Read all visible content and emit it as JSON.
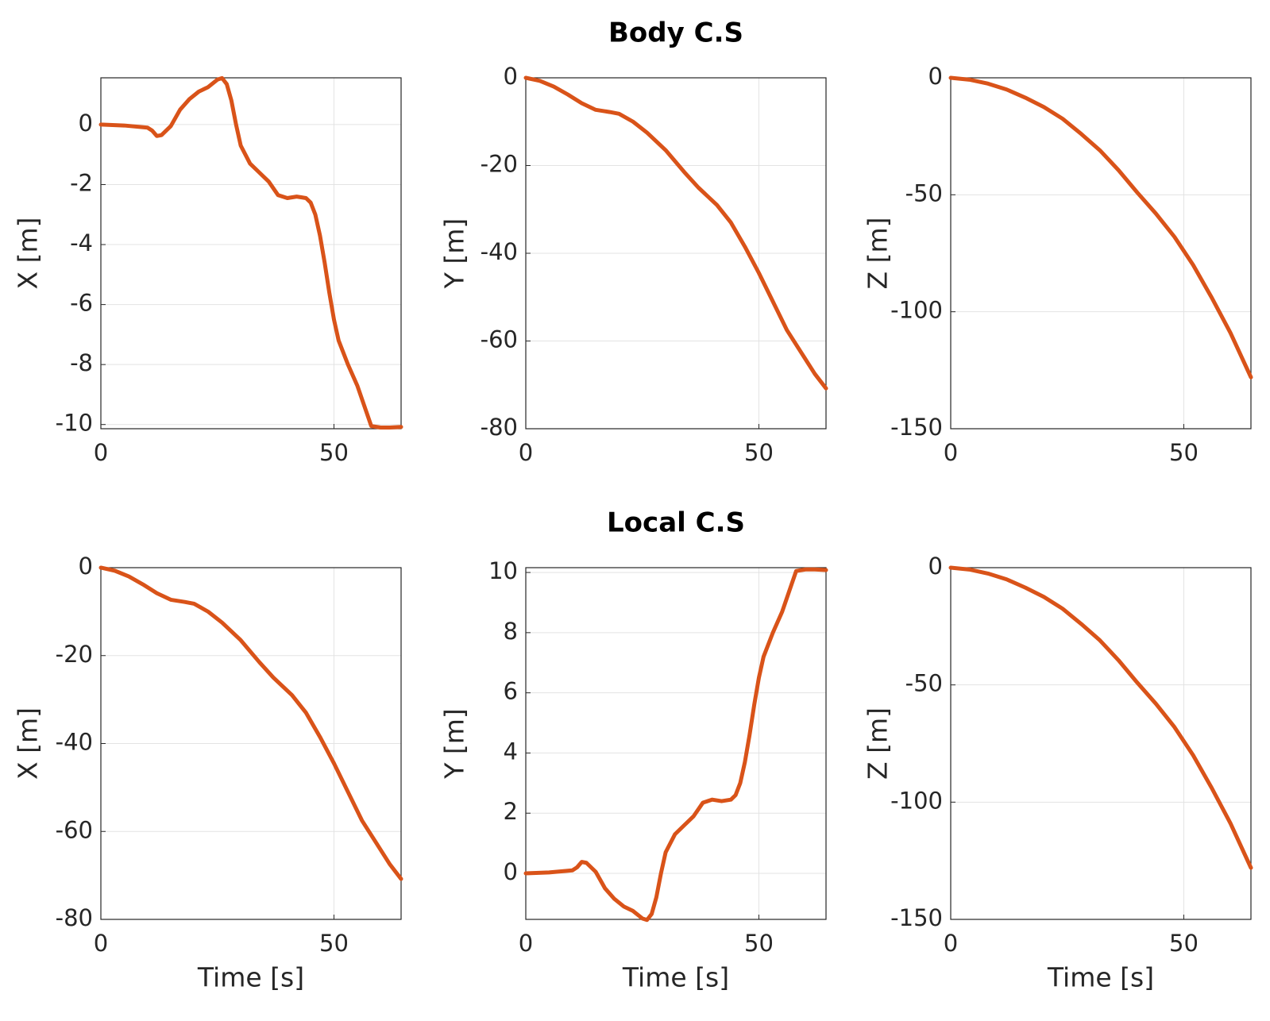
{
  "chart_data": [
    {
      "type": "line",
      "ylabel": "X [m]",
      "color": "#d95319",
      "x": [
        0,
        5,
        10,
        11,
        12,
        13,
        15,
        17,
        19,
        21,
        23,
        25,
        26,
        27,
        28,
        29,
        30,
        32,
        34,
        36,
        38,
        40,
        42,
        44,
        45,
        46,
        47,
        48,
        49,
        50,
        51,
        53,
        55,
        57,
        58,
        60,
        62,
        64.4
      ],
      "values": [
        0,
        -0.03,
        -0.1,
        -0.2,
        -0.38,
        -0.35,
        -0.05,
        0.5,
        0.85,
        1.1,
        1.25,
        1.5,
        1.55,
        1.35,
        0.8,
        0.0,
        -0.7,
        -1.3,
        -1.6,
        -1.9,
        -2.35,
        -2.45,
        -2.4,
        -2.45,
        -2.6,
        -3.0,
        -3.7,
        -4.6,
        -5.6,
        -6.5,
        -7.2,
        -8.0,
        -8.7,
        -9.6,
        -10.05,
        -10.1,
        -10.1,
        -10.08
      ],
      "xlim": [
        0,
        64.4
      ],
      "xticks": [
        0,
        50
      ],
      "ylim": [
        -10.14,
        1.56
      ],
      "yticks": [
        -10,
        -8,
        -6,
        -4,
        -2,
        0
      ],
      "grid": true
    },
    {
      "type": "line",
      "title": "Body C.S",
      "ylabel": "Y [m]",
      "color": "#d95319",
      "x": [
        0,
        3,
        6,
        9,
        12,
        15,
        18,
        20,
        23,
        26,
        30,
        34,
        37,
        41,
        44,
        47,
        50,
        53,
        56,
        59,
        62,
        64.4
      ],
      "values": [
        0,
        -0.7,
        -2,
        -3.8,
        -5.8,
        -7.3,
        -7.8,
        -8.2,
        -10,
        -12.5,
        -16.5,
        -21.5,
        -25,
        -29,
        -33,
        -38.5,
        -44.5,
        -51,
        -57.5,
        -62.5,
        -67.5,
        -70.8
      ],
      "xlim": [
        0,
        64.4
      ],
      "xticks": [
        0,
        50
      ],
      "ylim": [
        -80,
        0
      ],
      "yticks": [
        -80,
        -60,
        -40,
        -20,
        0
      ],
      "grid": true
    },
    {
      "type": "line",
      "ylabel": "Z [m]",
      "color": "#d95319",
      "x": [
        0,
        4,
        8,
        12,
        16,
        20,
        24,
        28,
        32,
        36,
        40,
        44,
        48,
        52,
        56,
        60,
        64.4
      ],
      "values": [
        0,
        -0.8,
        -2.5,
        -5,
        -8.5,
        -12.5,
        -17.5,
        -24,
        -31,
        -39.5,
        -49,
        -58,
        -68,
        -80,
        -94,
        -109,
        -128
      ],
      "xlim": [
        0,
        64.4
      ],
      "xticks": [
        0,
        50
      ],
      "ylim": [
        -150,
        0
      ],
      "yticks": [
        -150,
        -100,
        -50,
        0
      ],
      "grid": true
    },
    {
      "type": "line",
      "ylabel": "X [m]",
      "xlabel": "Time [s]",
      "color": "#d95319",
      "x": [
        0,
        3,
        6,
        9,
        12,
        15,
        18,
        20,
        23,
        26,
        30,
        34,
        37,
        41,
        44,
        47,
        50,
        53,
        56,
        59,
        62,
        64.4
      ],
      "values": [
        0,
        -0.7,
        -2,
        -3.8,
        -5.8,
        -7.3,
        -7.8,
        -8.2,
        -10,
        -12.5,
        -16.5,
        -21.5,
        -25,
        -29,
        -33,
        -38.5,
        -44.5,
        -51,
        -57.5,
        -62.5,
        -67.5,
        -70.8
      ],
      "xlim": [
        0,
        64.4
      ],
      "xticks": [
        0,
        50
      ],
      "ylim": [
        -80,
        0
      ],
      "yticks": [
        -80,
        -60,
        -40,
        -20,
        0
      ],
      "grid": true
    },
    {
      "type": "line",
      "title": "Local C.S",
      "ylabel": "Y [m]",
      "xlabel": "Time [s]",
      "color": "#d95319",
      "x": [
        0,
        5,
        10,
        11,
        12,
        13,
        15,
        17,
        19,
        21,
        23,
        25,
        26,
        27,
        28,
        29,
        30,
        32,
        34,
        36,
        38,
        40,
        42,
        44,
        45,
        46,
        47,
        48,
        49,
        50,
        51,
        53,
        55,
        57,
        58,
        60,
        62,
        64.4
      ],
      "values": [
        0,
        0.03,
        0.1,
        0.2,
        0.38,
        0.35,
        0.05,
        -0.5,
        -0.85,
        -1.1,
        -1.25,
        -1.5,
        -1.55,
        -1.35,
        -0.8,
        0.0,
        0.7,
        1.3,
        1.6,
        1.9,
        2.35,
        2.45,
        2.4,
        2.45,
        2.6,
        3.0,
        3.7,
        4.6,
        5.6,
        6.5,
        7.2,
        8.0,
        8.7,
        9.6,
        10.05,
        10.1,
        10.1,
        10.08
      ],
      "xlim": [
        0,
        64.4
      ],
      "xticks": [
        0,
        50
      ],
      "ylim": [
        -1.53,
        10.16
      ],
      "yticks": [
        0,
        2,
        4,
        6,
        8,
        10
      ],
      "grid": true
    },
    {
      "type": "line",
      "ylabel": "Z [m]",
      "xlabel": "Time [s]",
      "color": "#d95319",
      "x": [
        0,
        4,
        8,
        12,
        16,
        20,
        24,
        28,
        32,
        36,
        40,
        44,
        48,
        52,
        56,
        60,
        64.4
      ],
      "values": [
        0,
        -0.8,
        -2.5,
        -5,
        -8.5,
        -12.5,
        -17.5,
        -24,
        -31,
        -39.5,
        -49,
        -58,
        -68,
        -80,
        -94,
        -109,
        -128
      ],
      "xlim": [
        0,
        64.4
      ],
      "xticks": [
        0,
        50
      ],
      "ylim": [
        -150,
        0
      ],
      "yticks": [
        -150,
        -100,
        -50,
        0
      ],
      "grid": true
    }
  ]
}
